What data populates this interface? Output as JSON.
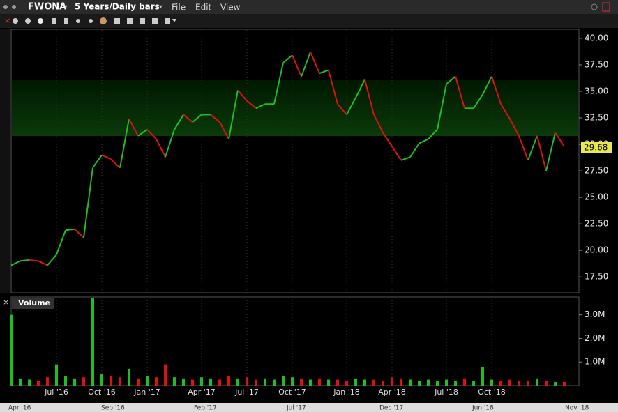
{
  "toolbar": {
    "symbol": "FWONA",
    "period": "5 Years/Daily bars",
    "menus": [
      "File",
      "Edit",
      "View"
    ]
  },
  "chart_data": [
    {
      "type": "price",
      "series": [
        {
          "name": "FWONA",
          "values": [
            18.6,
            19.0,
            19.1,
            19.0,
            18.6,
            19.6,
            21.9,
            22.0,
            21.2,
            27.8,
            29.0,
            28.6,
            27.8,
            32.4,
            30.8,
            31.4,
            30.5,
            28.8,
            31.4,
            32.8,
            32.1,
            32.8,
            32.8,
            32.1,
            30.5,
            35.1,
            34.1,
            33.4,
            33.8,
            33.8,
            37.7,
            38.4,
            36.4,
            38.7,
            36.7,
            37.0,
            33.8,
            32.8,
            34.4,
            36.1,
            32.8,
            31.1,
            29.8,
            28.5,
            28.8,
            30.1,
            30.5,
            31.4,
            35.7,
            36.4,
            33.4,
            33.4,
            34.7,
            36.4,
            33.8,
            32.4,
            30.8,
            28.5,
            30.8,
            27.5,
            31.1,
            29.8
          ]
        }
      ],
      "categories": [
        null,
        null,
        null,
        null,
        null,
        "Jul '16",
        null,
        null,
        null,
        null,
        "Oct '16",
        null,
        null,
        null,
        null,
        "Jan '17",
        null,
        null,
        null,
        null,
        null,
        "Apr '17",
        null,
        null,
        null,
        null,
        "Jul '17",
        null,
        null,
        null,
        null,
        "Oct '17",
        null,
        null,
        null,
        null,
        null,
        "Jan '18",
        null,
        null,
        null,
        null,
        "Apr '18",
        null,
        null,
        null,
        null,
        null,
        "Jul '18",
        null,
        null,
        null,
        null,
        "Oct '18",
        null,
        null,
        null,
        null,
        null,
        null,
        null,
        null
      ],
      "up_color": "#1fbf1f",
      "down_color": "#e01010",
      "last_price": 29.68,
      "grid": "x",
      "ylim": [
        16,
        40.85
      ],
      "yticks": [
        {
          "value": 17.5,
          "label": "17.50"
        },
        {
          "value": 20,
          "label": "20.00"
        },
        {
          "value": 22.5,
          "label": "22.50"
        },
        {
          "value": 25,
          "label": "25.00"
        },
        {
          "value": 27.5,
          "label": "27.50"
        },
        {
          "value": 30,
          "label": "30.00"
        },
        {
          "value": 32.5,
          "label": "32.50"
        },
        {
          "value": 35,
          "label": "35.00"
        },
        {
          "value": 37.5,
          "label": "37.50"
        },
        {
          "value": 40,
          "label": "40.00"
        }
      ]
    },
    {
      "type": "volume",
      "title": "Volume",
      "values": [
        3000000,
        300000,
        250000,
        200000,
        350000,
        900000,
        400000,
        300000,
        350000,
        3700000,
        500000,
        400000,
        350000,
        700000,
        300000,
        400000,
        350000,
        900000,
        350000,
        300000,
        250000,
        350000,
        300000,
        250000,
        400000,
        300000,
        350000,
        250000,
        300000,
        250000,
        400000,
        350000,
        300000,
        250000,
        300000,
        250000,
        250000,
        200000,
        300000,
        250000,
        250000,
        200000,
        350000,
        300000,
        250000,
        200000,
        250000,
        200000,
        250000,
        200000,
        300000,
        200000,
        800000,
        250000,
        200000,
        250000,
        200000,
        200000,
        300000,
        200000,
        150000,
        150000
      ],
      "ylim": [
        0,
        3760000
      ],
      "yticks": [
        {
          "value": 1000000,
          "label": "1.0M"
        },
        {
          "value": 2000000,
          "label": "2.0M"
        },
        {
          "value": 3000000,
          "label": "3.0M"
        }
      ]
    }
  ],
  "navigator_labels": [
    "Apr '16",
    "Sep '16",
    "Feb '17",
    "Jul '17",
    "Dec '17",
    "Jun '18",
    "Nov '18"
  ]
}
